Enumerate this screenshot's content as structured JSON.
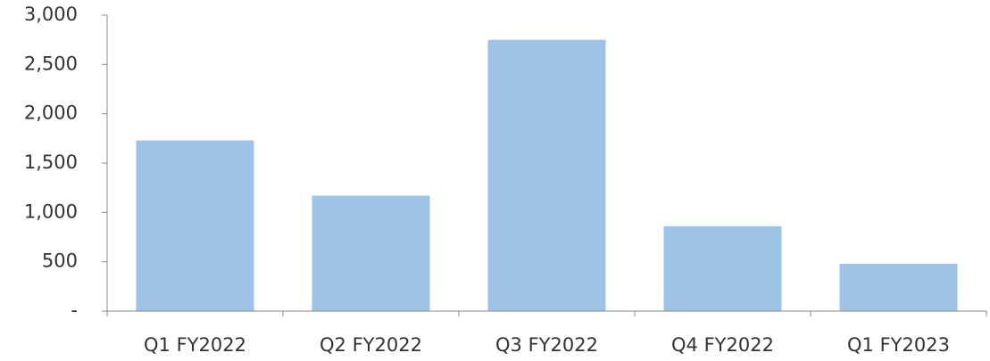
{
  "chart_data": {
    "type": "bar",
    "categories": [
      "Q1 FY2022",
      "Q2 FY2022",
      "Q3 FY2022",
      "Q4 FY2022",
      "Q1 FY2023"
    ],
    "values": [
      1730,
      1170,
      2750,
      860,
      480
    ],
    "color": "#9dc3e6",
    "ylim": [
      0,
      3000
    ],
    "yticks": [
      {
        "value": 0,
        "label": "-"
      },
      500,
      {
        "value": 1000,
        "label": "1,000"
      },
      {
        "value": 1500,
        "label": "1,500"
      },
      {
        "value": 2000,
        "label": "2,000"
      },
      {
        "value": 2500,
        "label": "2,500"
      },
      {
        "value": 3000,
        "label": "3,000"
      }
    ],
    "grid": false
  }
}
